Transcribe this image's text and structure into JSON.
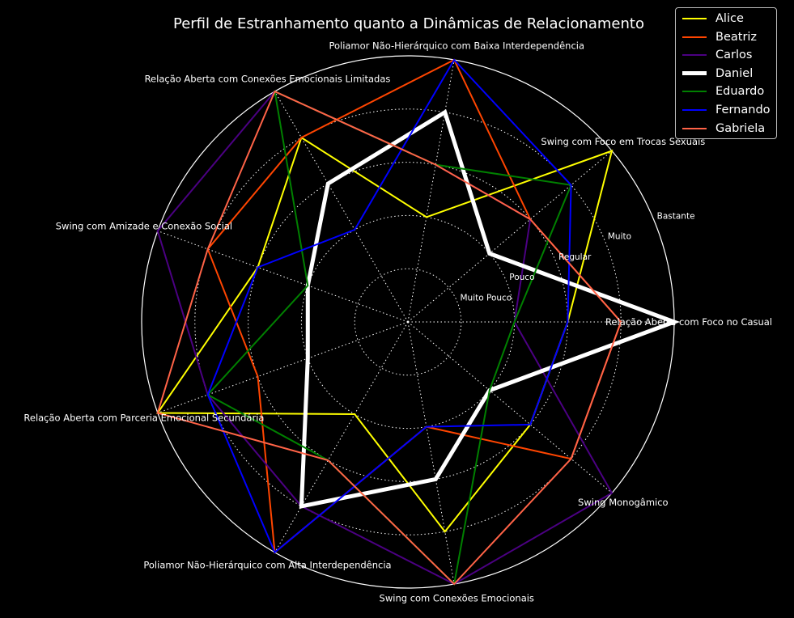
{
  "chart_data": {
    "type": "radar",
    "title": "Perfil de Estranhamento quanto a Dinâmicas de Relacionamento",
    "categories": [
      "Relação Aberta com Foco no Casual",
      "Swing com Foco em Trocas Sexuais",
      "Poliamor Não-Hierárquico com Baixa Interdependência",
      "Relação Aberta com Conexões Emocionais Limitadas",
      "Swing com Amizade e Conexão Social",
      "Relação Aberta com Parceria Emocional Secundária",
      "Poliamor Não-Hierárquico com Alta Interdependência",
      "Swing com Conexões Emocionais",
      "Swing Monogâmico"
    ],
    "levels": [
      "Muito Pouco",
      "Pouco",
      "Regular",
      "Muito",
      "Bastante"
    ],
    "rlim": [
      0,
      5
    ],
    "grid": true,
    "legend_position": "upper right",
    "series": [
      {
        "name": "Alice",
        "color": "#ffff00",
        "values": [
          3,
          5,
          2,
          4,
          3,
          5,
          2,
          4,
          3
        ],
        "emphasis": false
      },
      {
        "name": "Beatriz",
        "color": "#ff4500",
        "values": [
          4,
          3,
          5,
          4,
          4,
          3,
          5,
          2,
          4
        ],
        "emphasis": false
      },
      {
        "name": "Carlos",
        "color": "#4b0082",
        "values": [
          2,
          3,
          3,
          5,
          5,
          4,
          4,
          5,
          5
        ],
        "emphasis": false
      },
      {
        "name": "Daniel",
        "color": "#ffffff",
        "values": [
          5,
          2,
          4,
          3,
          2,
          2,
          4,
          3,
          2
        ],
        "emphasis": true
      },
      {
        "name": "Eduardo",
        "color": "#008000",
        "values": [
          2,
          4,
          3,
          5,
          2,
          4,
          3,
          5,
          2
        ],
        "emphasis": false
      },
      {
        "name": "Fernando",
        "color": "#0000ff",
        "values": [
          3,
          4,
          5,
          2,
          3,
          4,
          5,
          2,
          3
        ],
        "emphasis": false
      },
      {
        "name": "Gabriela",
        "color": "#ff6347",
        "values": [
          4,
          3,
          3,
          5,
          4,
          5,
          3,
          5,
          4
        ],
        "emphasis": false
      }
    ]
  }
}
